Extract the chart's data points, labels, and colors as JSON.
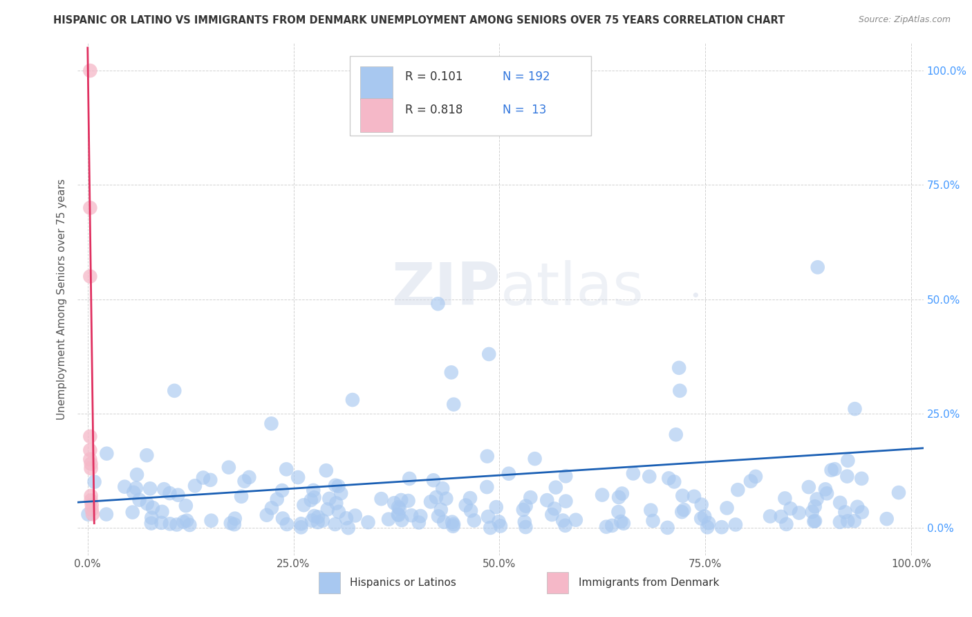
{
  "title": "HISPANIC OR LATINO VS IMMIGRANTS FROM DENMARK UNEMPLOYMENT AMONG SENIORS OVER 75 YEARS CORRELATION CHART",
  "source": "Source: ZipAtlas.com",
  "ylabel": "Unemployment Among Seniors over 75 years",
  "xtick_labels": [
    "0.0%",
    "25.0%",
    "50.0%",
    "75.0%",
    "100.0%"
  ],
  "ytick_labels": [
    "",
    "25.0%",
    "50.0%",
    "75.0%",
    "100.0%"
  ],
  "right_ytick_labels": [
    "0.0%",
    "25.0%",
    "50.0%",
    "75.0%",
    "100.0%"
  ],
  "yticks": [
    0.0,
    0.25,
    0.5,
    0.75,
    1.0
  ],
  "xticks": [
    0.0,
    0.25,
    0.5,
    0.75,
    1.0
  ],
  "blue_color": "#a8c8f0",
  "pink_color": "#f5b8c8",
  "blue_line_color": "#1a5fb4",
  "pink_line_color": "#e03060",
  "blue_R": 0.101,
  "blue_N": 192,
  "pink_R": 0.818,
  "pink_N": 13,
  "legend_label_blue": "Hispanics or Latinos",
  "legend_label_pink": "Immigrants from Denmark",
  "watermark_zip": "ZIP",
  "watermark_atlas": "atlas",
  "watermark_dot": "•",
  "background_color": "#ffffff",
  "grid_color": "#cccccc",
  "title_color": "#333333",
  "source_color": "#888888",
  "tick_color": "#555555",
  "right_tick_color": "#4499ff",
  "legend_text_color": "#333333",
  "legend_num_color": "#3377dd"
}
